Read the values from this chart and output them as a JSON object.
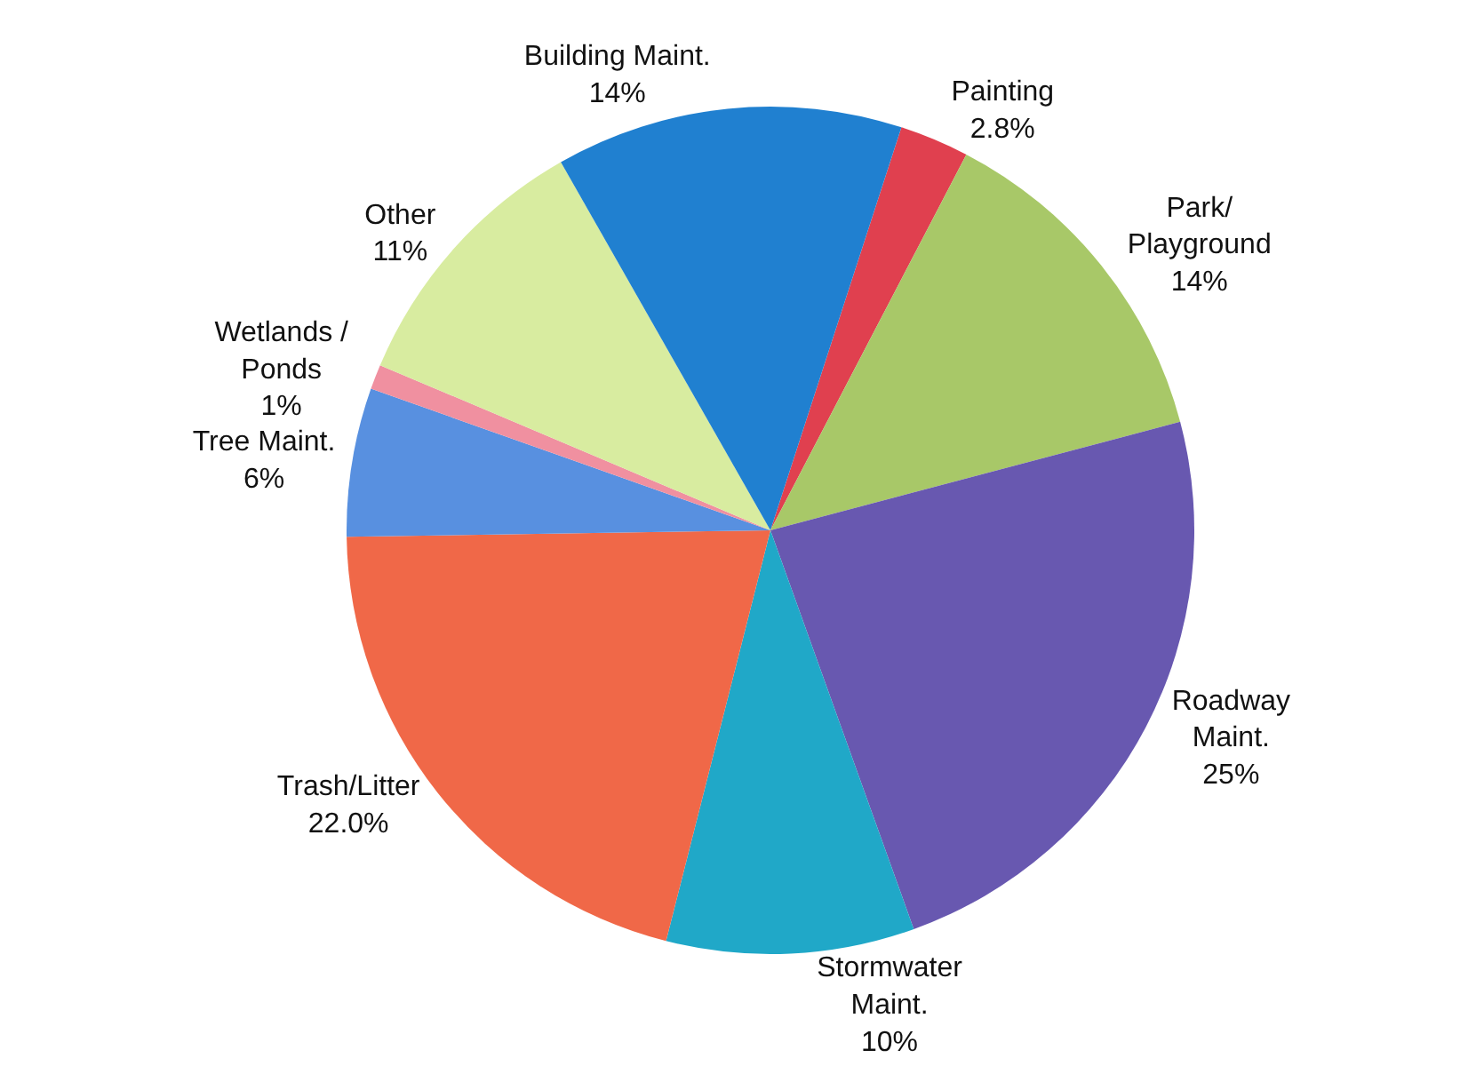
{
  "chart_data": {
    "type": "pie",
    "categories": [
      "Painting",
      "Park/\nPlayground",
      "Roadway\nMaint.",
      "Stormwater\nMaint.",
      "Trash/Litter",
      "Tree Maint.",
      "Wetlands /\nPonds",
      "Other",
      "Building Maint."
    ],
    "values": [
      2.8,
      14,
      25,
      10,
      22.0,
      6,
      1,
      11,
      14
    ],
    "value_labels": [
      "2.8%",
      "14%",
      "25%",
      "10%",
      "22.0%",
      "6%",
      "1%",
      "11%",
      "14%"
    ],
    "colors": [
      "#e0404f",
      "#a8c868",
      "#6858b0",
      "#20a8c8",
      "#f06848",
      "#5890e0",
      "#f090a0",
      "#d8eca0",
      "#2080d0"
    ],
    "legend": false
  }
}
